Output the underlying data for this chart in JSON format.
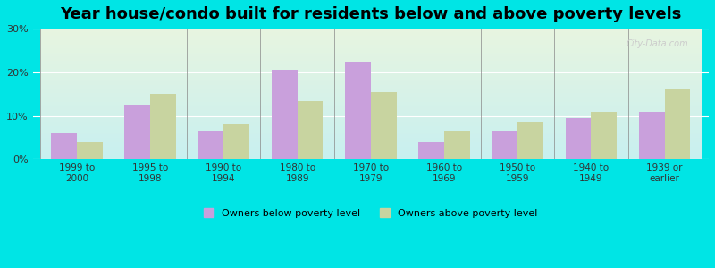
{
  "title": "Year house/condo built for residents below and above poverty levels",
  "categories": [
    "1999 to\n2000",
    "1995 to\n1998",
    "1990 to\n1994",
    "1980 to\n1989",
    "1970 to\n1979",
    "1960 to\n1969",
    "1950 to\n1959",
    "1940 to\n1949",
    "1939 or\nearlier"
  ],
  "below_poverty": [
    6.0,
    12.5,
    6.5,
    20.5,
    22.5,
    4.0,
    6.5,
    9.5,
    11.0
  ],
  "above_poverty": [
    4.0,
    15.0,
    8.0,
    13.5,
    15.5,
    6.5,
    8.5,
    11.0,
    16.0
  ],
  "below_color": "#c9a0dc",
  "above_color": "#c8d4a0",
  "background_outer": "#00e5e5",
  "background_inner_top": "#e8f5e0",
  "background_inner_bottom": "#c8f0f0",
  "ylim": [
    0,
    30
  ],
  "yticks": [
    0,
    10,
    20,
    30
  ],
  "ytick_labels": [
    "0%",
    "10%",
    "20%",
    "30%"
  ],
  "title_fontsize": 13,
  "legend_below_label": "Owners below poverty level",
  "legend_above_label": "Owners above poverty level",
  "bar_width": 0.35,
  "watermark": "City-Data.com"
}
